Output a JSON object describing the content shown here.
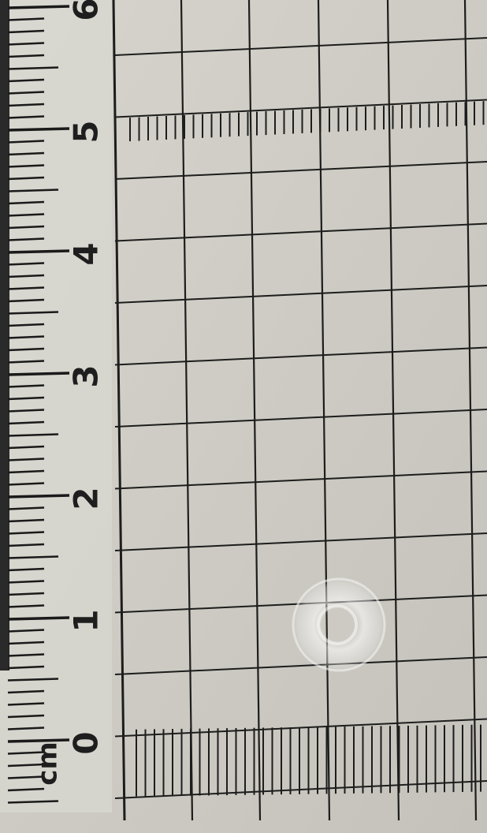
{
  "ruler": {
    "unit": "cm",
    "labels": [
      "0",
      "1",
      "2",
      "3",
      "4",
      "5",
      "6"
    ]
  }
}
